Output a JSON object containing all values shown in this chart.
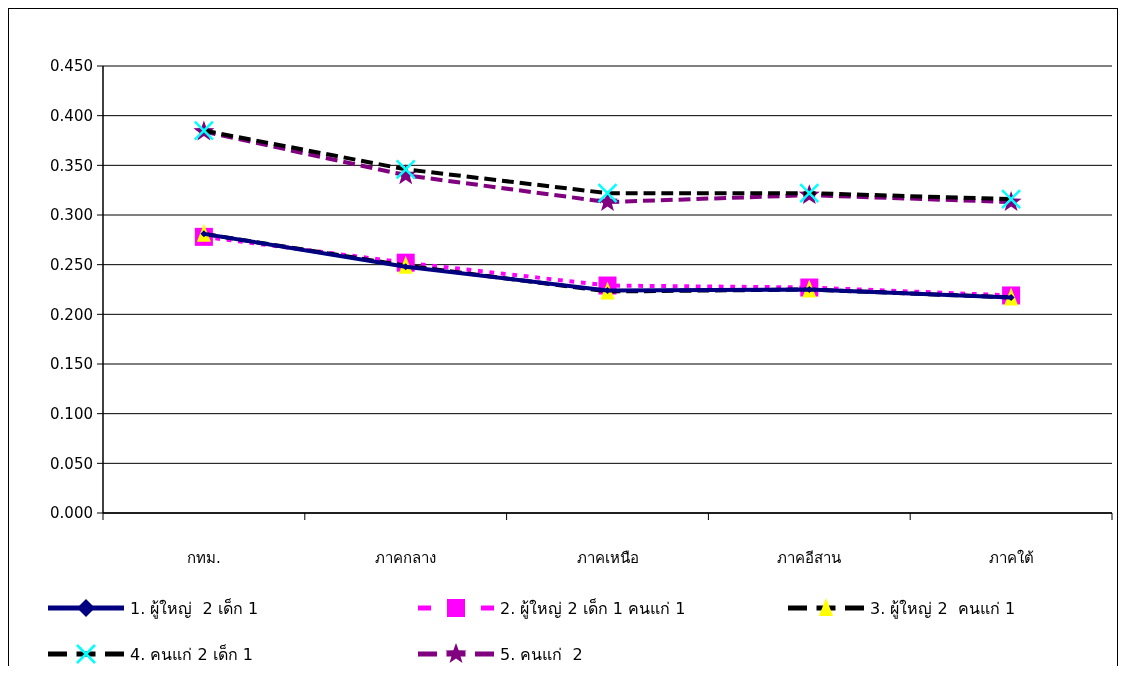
{
  "chart_data": {
    "type": "line",
    "categories": [
      "กทม.",
      "ภาคกลาง",
      "ภาคเหนือ",
      "ภาคอีสาน",
      "ภาคใต้"
    ],
    "ylim": [
      0,
      0.45
    ],
    "yticks": [
      {
        "value": 0,
        "label": "0.000"
      },
      {
        "value": 0.05,
        "label": "0.050"
      },
      {
        "value": 0.1,
        "label": "0.100"
      },
      {
        "value": 0.15,
        "label": "0.150"
      },
      {
        "value": 0.2,
        "label": "0.200"
      },
      {
        "value": 0.25,
        "label": "0.250"
      },
      {
        "value": 0.3,
        "label": "0.300"
      },
      {
        "value": 0.35,
        "label": "0.350"
      },
      {
        "value": 0.4,
        "label": "0.400"
      },
      {
        "value": 0.45,
        "label": "0.450"
      }
    ],
    "grid": "y",
    "legend": "bottom",
    "series": [
      {
        "name": "1. ผู้ใหญ่  2 เด็ก 1",
        "color": "#000080",
        "marker": "diamond",
        "line_style": "solid",
        "values": [
          0.281,
          0.248,
          0.224,
          0.225,
          0.217
        ]
      },
      {
        "name": "2. ผู้ใหญ่ 2 เด็ก 1 คนแก่ 1",
        "color": "#ff00ff",
        "marker": "square",
        "line_style": "dotted",
        "values": [
          0.278,
          0.252,
          0.229,
          0.227,
          0.219
        ]
      },
      {
        "name": "3. ผู้ใหญ่ 2  คนแก่ 1",
        "color": "#000000",
        "colors": [
          "#ffff00",
          "#ffff00",
          "#ffff00",
          "#ffff00",
          "#ffff00"
        ],
        "marker": "triangle",
        "line_style": "dashed",
        "values": [
          0.281,
          0.249,
          0.223,
          0.225,
          0.217
        ]
      },
      {
        "name": "4. คนแก่ 2 เด็ก 1",
        "color": "#000000",
        "colors": [
          "#00ffff",
          "#00ffff",
          "#00ffff",
          "#00ffff",
          "#00ffff"
        ],
        "marker": "cross",
        "line_style": "dashed",
        "values": [
          0.385,
          0.346,
          0.322,
          0.322,
          0.316
        ]
      },
      {
        "name": "5. คนแก่  2",
        "color": "#800080",
        "marker": "star",
        "line_style": "dashed",
        "values": [
          0.384,
          0.34,
          0.313,
          0.32,
          0.313
        ]
      }
    ]
  }
}
